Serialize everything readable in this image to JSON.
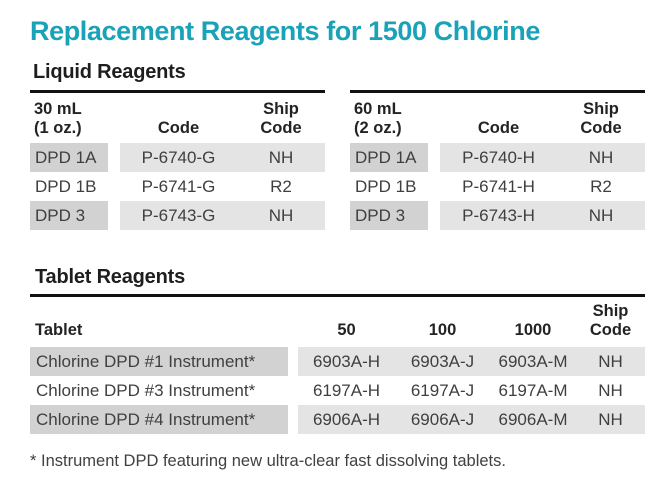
{
  "title": "Replacement Reagents for 1500 Chlorine",
  "colors": {
    "accent": "#1aa2b8",
    "row_shade_first_col": "#d2d2d2",
    "row_shade_rest": "#e4e4e4"
  },
  "liquid": {
    "heading": "Liquid Reagents",
    "tables": [
      {
        "size_line1": "30 mL",
        "size_line2": "(1 oz.)",
        "code_header": "Code",
        "ship_line1": "Ship",
        "ship_line2": "Code",
        "rows": [
          {
            "name": "DPD 1A",
            "code": "P-6740-G",
            "ship": "NH"
          },
          {
            "name": "DPD 1B",
            "code": "P-6741-G",
            "ship": "R2"
          },
          {
            "name": "DPD 3",
            "code": "P-6743-G",
            "ship": "NH"
          }
        ]
      },
      {
        "size_line1": "60 mL",
        "size_line2": "(2 oz.)",
        "code_header": "Code",
        "ship_line1": "Ship",
        "ship_line2": "Code",
        "rows": [
          {
            "name": "DPD 1A",
            "code": "P-6740-H",
            "ship": "NH"
          },
          {
            "name": "DPD 1B",
            "code": "P-6741-H",
            "ship": "R2"
          },
          {
            "name": "DPD 3",
            "code": "P-6743-H",
            "ship": "NH"
          }
        ]
      }
    ]
  },
  "tablet": {
    "heading": "Tablet Reagents",
    "col_tablet": "Tablet",
    "col_50": "50",
    "col_100": "100",
    "col_1000": "1000",
    "ship_line1": "Ship",
    "ship_line2": "Code",
    "rows": [
      {
        "name": "Chlorine DPD #1 Instrument*",
        "q50": "6903A-H",
        "q100": "6903A-J",
        "q1000": "6903A-M",
        "ship": "NH"
      },
      {
        "name": "Chlorine DPD #3 Instrument*",
        "q50": "6197A-H",
        "q100": "6197A-J",
        "q1000": "6197A-M",
        "ship": "NH"
      },
      {
        "name": "Chlorine DPD #4 Instrument*",
        "q50": "6906A-H",
        "q100": "6906A-J",
        "q1000": "6906A-M",
        "ship": "NH"
      }
    ]
  },
  "footnote": "* Instrument DPD featuring new ultra-clear fast dissolving tablets."
}
